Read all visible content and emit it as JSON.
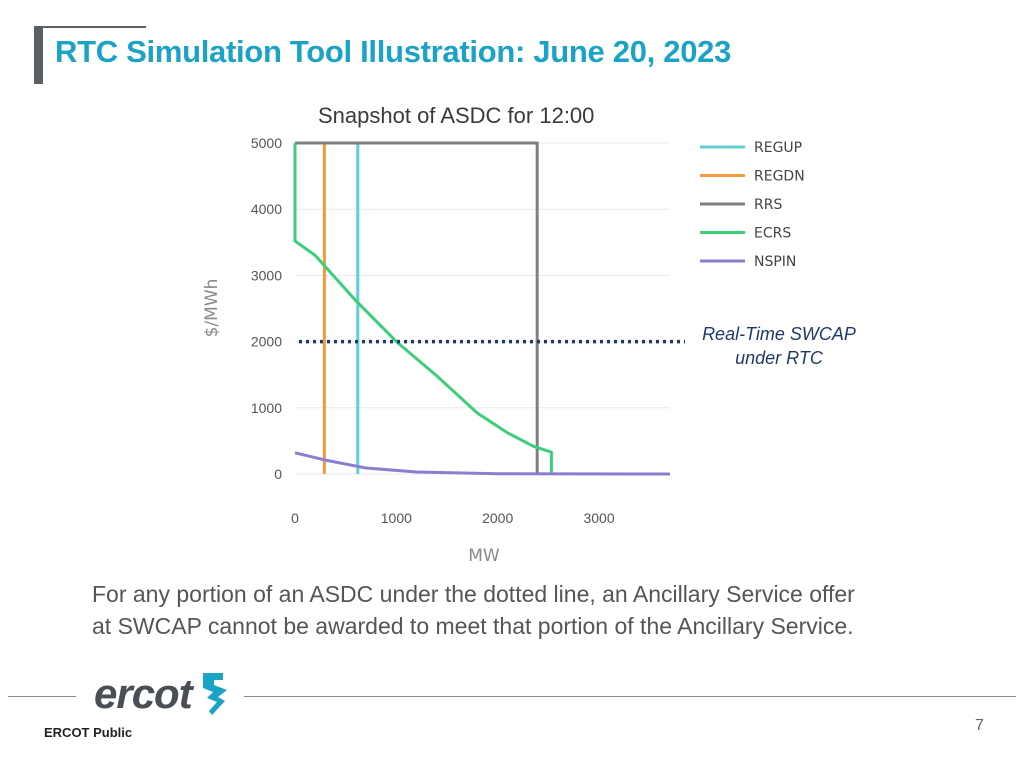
{
  "slide": {
    "title": "RTC Simulation Tool Illustration: June 20, 2023",
    "caption_lines": [
      "For any portion of an ASDC under the dotted line, an Ancillary Service offer",
      "at SWCAP cannot be awarded to meet that portion of the Ancillary Service."
    ],
    "footer_label": "ERCOT Public",
    "page_number": "7",
    "logo_text": "ercot",
    "title_color": "#1ba3c6"
  },
  "chart_data": {
    "type": "line",
    "title": "Snapshot of ASDC for 12:00",
    "xlabel": "MW",
    "ylabel": "$/MWh",
    "xlim": [
      0,
      3700
    ],
    "ylim": [
      0,
      5000
    ],
    "x_ticks": [
      0,
      1000,
      2000,
      3000
    ],
    "y_ticks": [
      0,
      1000,
      2000,
      3000,
      4000,
      5000
    ],
    "grid": true,
    "legend_position": "right",
    "series": [
      {
        "name": "REGUP",
        "color": "#5fcfd3",
        "points": [
          [
            0,
            5000
          ],
          [
            620,
            5000
          ],
          [
            620,
            0
          ]
        ]
      },
      {
        "name": "REGDN",
        "color": "#f39a3e",
        "points": [
          [
            0,
            5000
          ],
          [
            290,
            5000
          ],
          [
            290,
            0
          ]
        ]
      },
      {
        "name": "RRS",
        "color": "#7f7f7f",
        "points": [
          [
            0,
            5000
          ],
          [
            2390,
            5000
          ],
          [
            2390,
            0
          ]
        ]
      },
      {
        "name": "ECRS",
        "color": "#3dce78",
        "points": [
          [
            0,
            5000
          ],
          [
            0,
            3520
          ],
          [
            200,
            3300
          ],
          [
            600,
            2620
          ],
          [
            1000,
            2000
          ],
          [
            1400,
            1480
          ],
          [
            1800,
            920
          ],
          [
            2100,
            620
          ],
          [
            2350,
            420
          ],
          [
            2530,
            330
          ],
          [
            2530,
            0
          ]
        ]
      },
      {
        "name": "NSPIN",
        "color": "#8a7fcf",
        "points": [
          [
            0,
            320
          ],
          [
            300,
            210
          ],
          [
            700,
            90
          ],
          [
            1200,
            30
          ],
          [
            2000,
            5
          ],
          [
            3700,
            0
          ]
        ]
      }
    ],
    "reference_line": {
      "label_lines": [
        "Real-Time SWCAP",
        "under RTC"
      ],
      "y": 2000,
      "color": "#1f3a6a",
      "style": "dotted"
    }
  }
}
